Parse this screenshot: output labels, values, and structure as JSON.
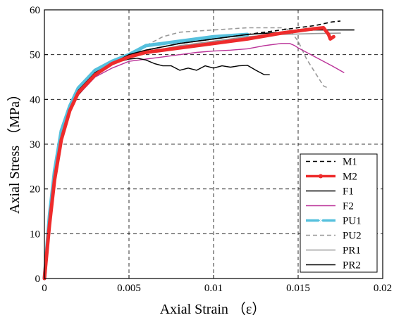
{
  "chart_data": {
    "type": "line",
    "xlabel": "Axial Strain （ε）",
    "ylabel": "Axial Stress （MPa）",
    "xlim": [
      0,
      0.02
    ],
    "ylim": [
      0,
      60
    ],
    "x_ticks": [
      0,
      0.005,
      0.01,
      0.015,
      0.02
    ],
    "x_tick_labels": [
      "0",
      "0.005",
      "0.01",
      "0.015",
      "0.02"
    ],
    "y_ticks": [
      0,
      10,
      20,
      30,
      40,
      50,
      60
    ],
    "y_tick_labels": [
      "0",
      "10",
      "20",
      "30",
      "40",
      "50",
      "60"
    ],
    "grid": true,
    "legend_position": "bottom-right",
    "series": [
      {
        "name": "M1",
        "color": "#000000",
        "dash": "dashed",
        "width": 1.6,
        "points": [
          [
            0,
            0
          ],
          [
            0.0003,
            12
          ],
          [
            0.0006,
            22
          ],
          [
            0.001,
            31
          ],
          [
            0.0015,
            37
          ],
          [
            0.002,
            41
          ],
          [
            0.003,
            45.5
          ],
          [
            0.004,
            48
          ],
          [
            0.005,
            49.5
          ],
          [
            0.006,
            51
          ],
          [
            0.008,
            52.5
          ],
          [
            0.01,
            53.5
          ],
          [
            0.012,
            54.5
          ],
          [
            0.014,
            55.5
          ],
          [
            0.016,
            56.5
          ],
          [
            0.017,
            57.3
          ],
          [
            0.0175,
            57.5
          ]
        ]
      },
      {
        "name": "M2",
        "color": "#ee2b2b",
        "dash": "solid",
        "width": 5,
        "marker": "star",
        "points": [
          [
            0,
            0
          ],
          [
            0.0003,
            12
          ],
          [
            0.0006,
            22
          ],
          [
            0.001,
            31
          ],
          [
            0.0015,
            37.5
          ],
          [
            0.002,
            41.5
          ],
          [
            0.003,
            45.5
          ],
          [
            0.004,
            48
          ],
          [
            0.005,
            49.5
          ],
          [
            0.006,
            50.5
          ],
          [
            0.008,
            51.5
          ],
          [
            0.01,
            52.5
          ],
          [
            0.012,
            53.5
          ],
          [
            0.014,
            54.8
          ],
          [
            0.016,
            55.8
          ],
          [
            0.0165,
            56
          ],
          [
            0.0168,
            54.5
          ],
          [
            0.0169,
            53.5
          ],
          [
            0.0171,
            54
          ]
        ]
      },
      {
        "name": "F1",
        "color": "#000000",
        "dash": "solid",
        "width": 1.4,
        "points": [
          [
            0,
            0
          ],
          [
            0.0003,
            12
          ],
          [
            0.0006,
            23
          ],
          [
            0.001,
            32
          ],
          [
            0.0015,
            38
          ],
          [
            0.002,
            42
          ],
          [
            0.003,
            46
          ],
          [
            0.004,
            48
          ],
          [
            0.005,
            49
          ],
          [
            0.0055,
            49.2
          ],
          [
            0.006,
            48.8
          ],
          [
            0.0065,
            48
          ],
          [
            0.007,
            47.5
          ],
          [
            0.0075,
            47.5
          ],
          [
            0.008,
            46.5
          ],
          [
            0.0085,
            47
          ],
          [
            0.009,
            46.5
          ],
          [
            0.0095,
            47.5
          ],
          [
            0.01,
            47
          ],
          [
            0.0105,
            47.5
          ],
          [
            0.011,
            47.2
          ],
          [
            0.0115,
            47.5
          ],
          [
            0.012,
            47.6
          ],
          [
            0.0125,
            46.5
          ],
          [
            0.013,
            45.5
          ],
          [
            0.0133,
            45.5
          ]
        ]
      },
      {
        "name": "F2",
        "color": "#bb3399",
        "dash": "solid",
        "width": 1.4,
        "points": [
          [
            0,
            0
          ],
          [
            0.0003,
            12
          ],
          [
            0.0006,
            22
          ],
          [
            0.001,
            31
          ],
          [
            0.0015,
            37
          ],
          [
            0.002,
            41
          ],
          [
            0.003,
            45
          ],
          [
            0.004,
            47
          ],
          [
            0.005,
            48.5
          ],
          [
            0.006,
            49
          ],
          [
            0.007,
            49.5
          ],
          [
            0.008,
            50
          ],
          [
            0.009,
            50.5
          ],
          [
            0.01,
            50.8
          ],
          [
            0.011,
            51
          ],
          [
            0.012,
            51.3
          ],
          [
            0.013,
            52
          ],
          [
            0.014,
            52.5
          ],
          [
            0.0145,
            52.5
          ],
          [
            0.0148,
            52
          ],
          [
            0.015,
            51.5
          ],
          [
            0.016,
            49.5
          ],
          [
            0.017,
            47.5
          ],
          [
            0.0177,
            46
          ]
        ]
      },
      {
        "name": "PU1",
        "color": "#55c0dd",
        "dash": "solid",
        "width": 5,
        "marker": "x",
        "points": [
          [
            0,
            0
          ],
          [
            0.0003,
            14
          ],
          [
            0.0006,
            24
          ],
          [
            0.001,
            33
          ],
          [
            0.0015,
            38.5
          ],
          [
            0.002,
            42.5
          ],
          [
            0.003,
            46.5
          ],
          [
            0.004,
            48.5
          ],
          [
            0.005,
            50
          ],
          [
            0.0055,
            51
          ],
          [
            0.006,
            52
          ],
          [
            0.007,
            52.5
          ],
          [
            0.008,
            53
          ],
          [
            0.01,
            54
          ],
          [
            0.012,
            54.5
          ]
        ]
      },
      {
        "name": "PU2",
        "color": "#999999",
        "dash": "dashed",
        "width": 1.6,
        "points": [
          [
            0,
            0
          ],
          [
            0.0003,
            12
          ],
          [
            0.0006,
            22
          ],
          [
            0.001,
            31
          ],
          [
            0.0015,
            37
          ],
          [
            0.002,
            41.5
          ],
          [
            0.003,
            46
          ],
          [
            0.004,
            48.5
          ],
          [
            0.005,
            50
          ],
          [
            0.006,
            52
          ],
          [
            0.007,
            54
          ],
          [
            0.008,
            55
          ],
          [
            0.01,
            55.5
          ],
          [
            0.012,
            56
          ],
          [
            0.014,
            56
          ],
          [
            0.0145,
            55.5
          ],
          [
            0.015,
            53
          ],
          [
            0.0155,
            49
          ],
          [
            0.016,
            46
          ],
          [
            0.0165,
            43
          ],
          [
            0.0168,
            42.5
          ]
        ]
      },
      {
        "name": "PR1",
        "color": "#999999",
        "dash": "solid",
        "width": 1.6,
        "points": [
          [
            0,
            0
          ],
          [
            0.0003,
            12
          ],
          [
            0.0006,
            22
          ],
          [
            0.001,
            31
          ],
          [
            0.0015,
            37
          ],
          [
            0.002,
            41.5
          ],
          [
            0.003,
            46
          ],
          [
            0.004,
            48
          ],
          [
            0.005,
            49.5
          ],
          [
            0.006,
            50.5
          ],
          [
            0.008,
            52
          ],
          [
            0.01,
            53
          ],
          [
            0.012,
            54
          ],
          [
            0.014,
            54.5
          ],
          [
            0.016,
            54.7
          ],
          [
            0.0175,
            54.8
          ]
        ]
      },
      {
        "name": "PR2",
        "color": "#000000",
        "dash": "solid",
        "width": 1.6,
        "points": [
          [
            0,
            0
          ],
          [
            0.0003,
            12
          ],
          [
            0.0006,
            22
          ],
          [
            0.001,
            31
          ],
          [
            0.0015,
            37
          ],
          [
            0.002,
            41
          ],
          [
            0.003,
            45.5
          ],
          [
            0.004,
            48
          ],
          [
            0.005,
            50
          ],
          [
            0.006,
            51
          ],
          [
            0.008,
            52.5
          ],
          [
            0.01,
            53.5
          ],
          [
            0.012,
            54.5
          ],
          [
            0.014,
            55
          ],
          [
            0.016,
            55.5
          ],
          [
            0.017,
            55.5
          ],
          [
            0.018,
            55.5
          ],
          [
            0.0183,
            55.5
          ]
        ]
      }
    ]
  }
}
